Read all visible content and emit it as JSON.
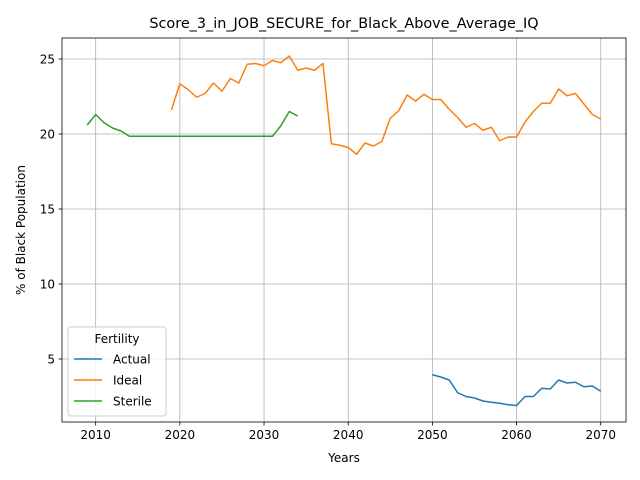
{
  "chart_data": {
    "type": "line",
    "title": "Score_3_in_JOB_SECURE_for_Black_Above_Average_IQ",
    "xlabel": "Years",
    "ylabel": "% of Black Population",
    "xlim": [
      2006,
      2073
    ],
    "ylim": [
      0.8,
      26.4
    ],
    "xticks": [
      2010,
      2020,
      2030,
      2040,
      2050,
      2060,
      2070
    ],
    "yticks": [
      5,
      10,
      15,
      20,
      25
    ],
    "grid": true,
    "legend": {
      "title": "Fertility",
      "position": "lower-left"
    },
    "series": [
      {
        "name": "Actual",
        "color": "#1f77b4",
        "x": [
          2050,
          2051,
          2052,
          2053,
          2054,
          2055,
          2056,
          2057,
          2058,
          2059,
          2060,
          2061,
          2062,
          2063,
          2064,
          2065,
          2066,
          2067,
          2068,
          2069,
          2070
        ],
        "y": [
          3.95,
          3.8,
          3.6,
          2.75,
          2.5,
          2.4,
          2.2,
          2.12,
          2.05,
          1.95,
          1.9,
          2.5,
          2.5,
          3.05,
          3.0,
          3.6,
          3.4,
          3.45,
          3.15,
          3.2,
          2.85
        ]
      },
      {
        "name": "Ideal",
        "color": "#ff7f0e",
        "x": [
          2019,
          2020,
          2021,
          2022,
          2023,
          2024,
          2025,
          2026,
          2027,
          2028,
          2029,
          2030,
          2031,
          2032,
          2033,
          2034,
          2035,
          2036,
          2037,
          2038,
          2039,
          2040,
          2041,
          2042,
          2043,
          2044,
          2045,
          2046,
          2047,
          2048,
          2049,
          2050,
          2051,
          2052,
          2053,
          2054,
          2055,
          2056,
          2057,
          2058,
          2059,
          2060,
          2061,
          2062,
          2063,
          2064,
          2065,
          2066,
          2067,
          2068,
          2069,
          2070
        ],
        "y": [
          21.6,
          23.35,
          22.95,
          22.45,
          22.7,
          23.4,
          22.85,
          23.7,
          23.4,
          24.65,
          24.7,
          24.55,
          24.9,
          24.75,
          25.2,
          24.25,
          24.4,
          24.25,
          24.7,
          19.35,
          19.25,
          19.1,
          18.65,
          19.4,
          19.2,
          19.5,
          21.05,
          21.55,
          22.6,
          22.2,
          22.65,
          22.3,
          22.3,
          21.65,
          21.1,
          20.45,
          20.7,
          20.25,
          20.45,
          19.55,
          19.8,
          19.8,
          20.8,
          21.5,
          22.05,
          22.05,
          23.0,
          22.55,
          22.7,
          22.0,
          21.3,
          21.0
        ]
      },
      {
        "name": "Sterile",
        "color": "#2ca02c",
        "x": [
          2009,
          2010,
          2011,
          2012,
          2013,
          2014,
          2015,
          2016,
          2017,
          2018,
          2019,
          2020,
          2021,
          2022,
          2023,
          2024,
          2025,
          2026,
          2027,
          2028,
          2029,
          2030,
          2031,
          2032,
          2033,
          2034
        ],
        "y": [
          20.6,
          21.3,
          20.75,
          20.4,
          20.2,
          19.85,
          19.85,
          19.85,
          19.85,
          19.85,
          19.85,
          19.85,
          19.85,
          19.85,
          19.85,
          19.85,
          19.85,
          19.85,
          19.85,
          19.85,
          19.85,
          19.85,
          19.85,
          20.55,
          21.5,
          21.2
        ]
      }
    ]
  }
}
